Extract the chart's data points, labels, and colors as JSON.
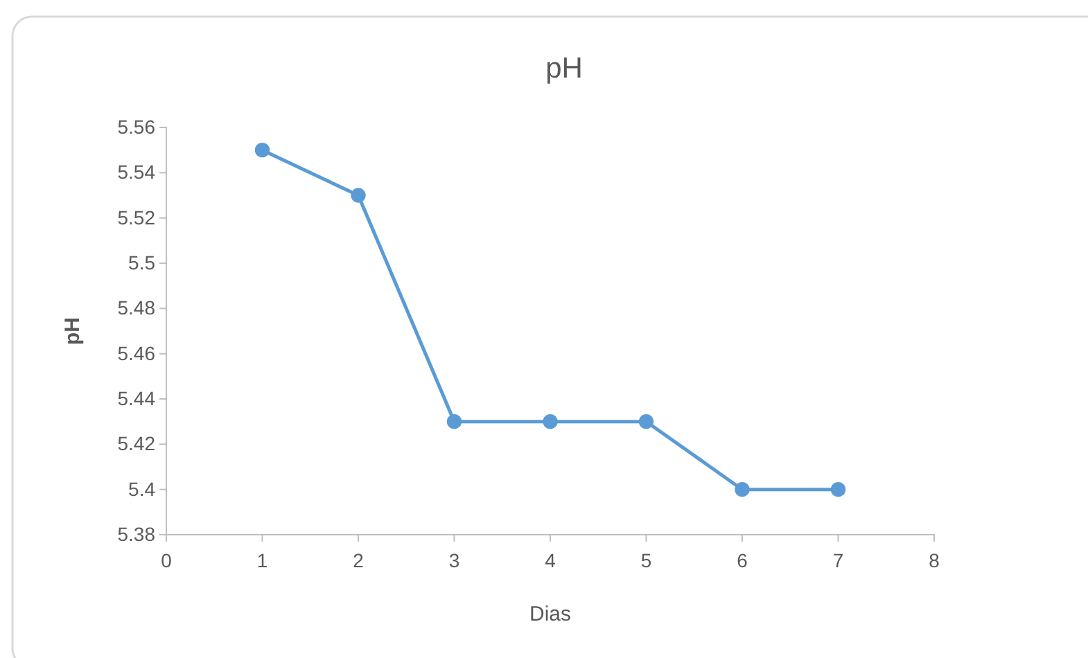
{
  "chart_data": {
    "type": "line",
    "title": "pH",
    "xlabel": "Dias",
    "ylabel": "pH",
    "x": [
      1,
      2,
      3,
      4,
      5,
      6,
      7
    ],
    "series": [
      {
        "color": "#5b9bd5",
        "values": [
          5.55,
          5.53,
          5.43,
          5.43,
          5.43,
          5.4,
          5.4
        ]
      }
    ],
    "xlim": [
      0,
      8
    ],
    "xticks": [
      0,
      1,
      2,
      3,
      4,
      5,
      6,
      7,
      8
    ],
    "ylim": [
      5.38,
      5.56
    ],
    "yticks": [
      5.38,
      5.4,
      5.42,
      5.44,
      5.46,
      5.48,
      5.5,
      5.52,
      5.54,
      5.56
    ],
    "grid": false,
    "marker": "circle",
    "line_style": "solid"
  }
}
